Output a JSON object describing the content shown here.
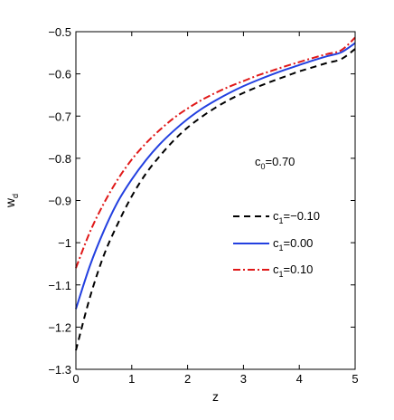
{
  "chart_data": {
    "type": "line",
    "xlabel": "z",
    "ylabel": {
      "main": "w",
      "sub": "d"
    },
    "xlim": [
      0,
      5
    ],
    "ylim": [
      -1.3,
      -0.5
    ],
    "xticks": [
      0,
      1,
      2,
      3,
      4,
      5
    ],
    "yticks": [
      -1.3,
      -1.2,
      -1.1,
      -1,
      -0.9,
      -0.8,
      -0.7,
      -0.6,
      -0.5
    ],
    "xtick_labels": [
      "0",
      "1",
      "2",
      "3",
      "4",
      "5"
    ],
    "ytick_labels": [
      "−1.3",
      "−1.2",
      "−1.1",
      "−1",
      "−0.9",
      "−0.8",
      "−0.7",
      "−0.6",
      "−0.5"
    ],
    "grid": false,
    "legend_position": "lower-right",
    "annotation": {
      "main": "c",
      "sub": "0",
      "rest": "=0.70"
    },
    "x": [
      0,
      0.25,
      0.5,
      0.75,
      1,
      1.25,
      1.5,
      1.75,
      2,
      2.25,
      2.5,
      2.75,
      3,
      3.25,
      3.5,
      3.75,
      4,
      4.25,
      4.5,
      4.75,
      5
    ],
    "series": [
      {
        "legend": {
          "main": "c",
          "sub": "1",
          "rest": "=−0.10"
        },
        "color": "#000000",
        "dash": "7,5",
        "values": [
          -1.255,
          -1.13,
          -1.03,
          -0.955,
          -0.89,
          -0.837,
          -0.795,
          -0.758,
          -0.727,
          -0.702,
          -0.68,
          -0.661,
          -0.645,
          -0.631,
          -0.618,
          -0.606,
          -0.594,
          -0.584,
          -0.574,
          -0.565,
          -0.541
        ]
      },
      {
        "legend": {
          "main": "c",
          "sub": "1",
          "rest": "=0.00"
        },
        "color": "#2340e0",
        "dash": "",
        "values": [
          -1.157,
          -1.055,
          -0.972,
          -0.903,
          -0.85,
          -0.805,
          -0.767,
          -0.735,
          -0.707,
          -0.683,
          -0.663,
          -0.645,
          -0.629,
          -0.615,
          -0.602,
          -0.59,
          -0.579,
          -0.568,
          -0.558,
          -0.549,
          -0.527
        ]
      },
      {
        "legend": {
          "main": "c",
          "sub": "1",
          "rest": "=0.10"
        },
        "color": "#e01818",
        "dash": "8,3,2,3",
        "values": [
          -1.06,
          -0.975,
          -0.907,
          -0.85,
          -0.803,
          -0.765,
          -0.733,
          -0.705,
          -0.682,
          -0.662,
          -0.645,
          -0.63,
          -0.617,
          -0.604,
          -0.593,
          -0.582,
          -0.572,
          -0.562,
          -0.553,
          -0.544,
          -0.514
        ]
      }
    ]
  }
}
